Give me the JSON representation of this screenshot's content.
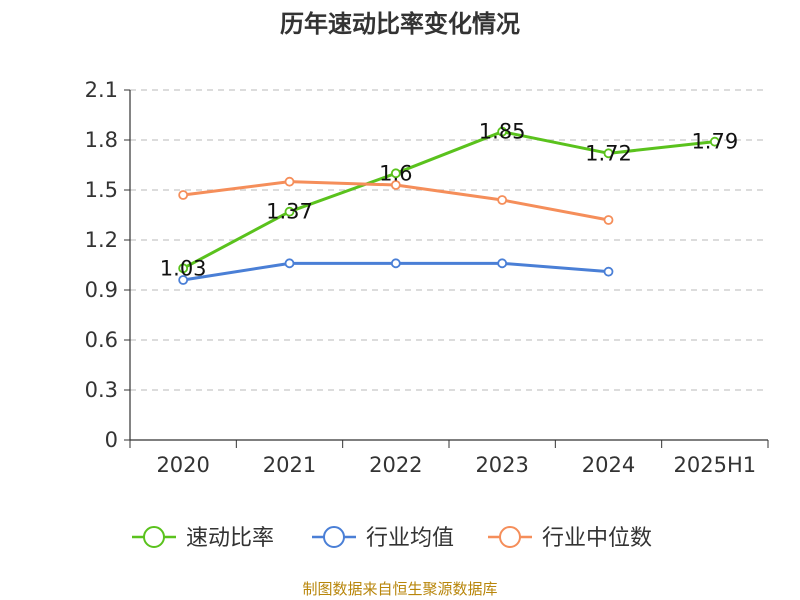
{
  "chart_data": {
    "type": "line",
    "title": "历年速动比率变化情况",
    "categories": [
      "2020",
      "2021",
      "2022",
      "2023",
      "2024",
      "2025H1"
    ],
    "yticks": [
      "0",
      "0.3",
      "0.6",
      "0.9",
      "1.2",
      "1.5",
      "1.8",
      "2.1"
    ],
    "ylim": [
      0,
      2.1
    ],
    "grid": true,
    "legend_position": "bottom",
    "series": [
      {
        "name": "速动比率",
        "color": "#5ac21d",
        "values": [
          1.03,
          1.37,
          1.6,
          1.85,
          1.72,
          1.79
        ],
        "labels": [
          "1.03",
          "1.37",
          "1.6",
          "1.85",
          "1.72",
          "1.79"
        ]
      },
      {
        "name": "行业均值",
        "color": "#4a7fd6",
        "values": [
          0.96,
          1.06,
          1.06,
          1.06,
          1.01,
          null
        ]
      },
      {
        "name": "行业中位数",
        "color": "#f58e5a",
        "values": [
          1.47,
          1.55,
          1.53,
          1.44,
          1.32,
          null
        ]
      }
    ]
  },
  "source": "制图数据来自恒生聚源数据库"
}
